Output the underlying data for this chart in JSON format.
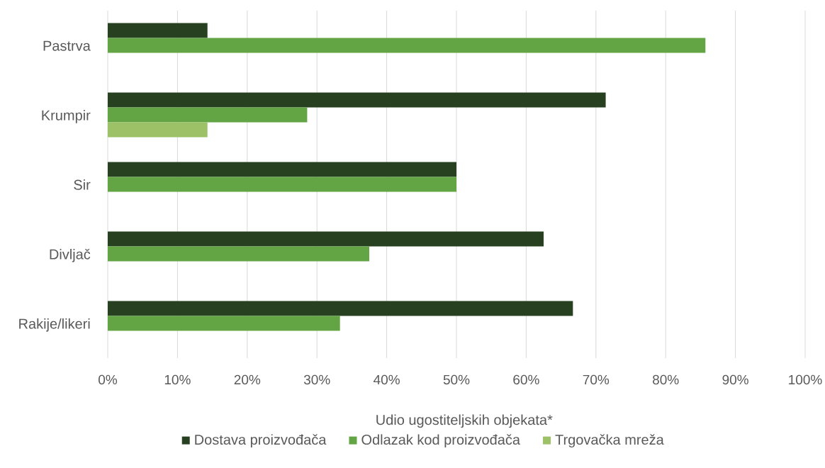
{
  "chart_data": {
    "type": "bar",
    "orientation": "horizontal",
    "xlabel": "Udio ugostiteljskih objekata*",
    "categories": [
      "Pastrva",
      "Krumpir",
      "Sir",
      "Divljač",
      "Rakije/likeri"
    ],
    "series": [
      {
        "name": "Dostava proizvođača",
        "color": "#274020",
        "values": [
          14.3,
          71.4,
          50,
          62.5,
          66.7
        ]
      },
      {
        "name": "Odlazak kod proizvođača",
        "color": "#63a545",
        "values": [
          85.7,
          28.6,
          50,
          37.5,
          33.3
        ]
      },
      {
        "name": "Trgovačka mreža",
        "color": "#9dc166",
        "values": [
          null,
          14.3,
          null,
          null,
          null
        ]
      }
    ],
    "xlim": [
      0,
      100
    ],
    "xticks": [
      {
        "value": 0,
        "label": "0%"
      },
      {
        "value": 10,
        "label": "10%"
      },
      {
        "value": 20,
        "label": "20%"
      },
      {
        "value": 30,
        "label": "30%"
      },
      {
        "value": 40,
        "label": "40%"
      },
      {
        "value": 50,
        "label": "50%"
      },
      {
        "value": 60,
        "label": "60%"
      },
      {
        "value": 70,
        "label": "70%"
      },
      {
        "value": 80,
        "label": "80%"
      },
      {
        "value": 90,
        "label": "90%"
      },
      {
        "value": 100,
        "label": "100%"
      }
    ],
    "grid": "x",
    "legend": "bottom"
  }
}
